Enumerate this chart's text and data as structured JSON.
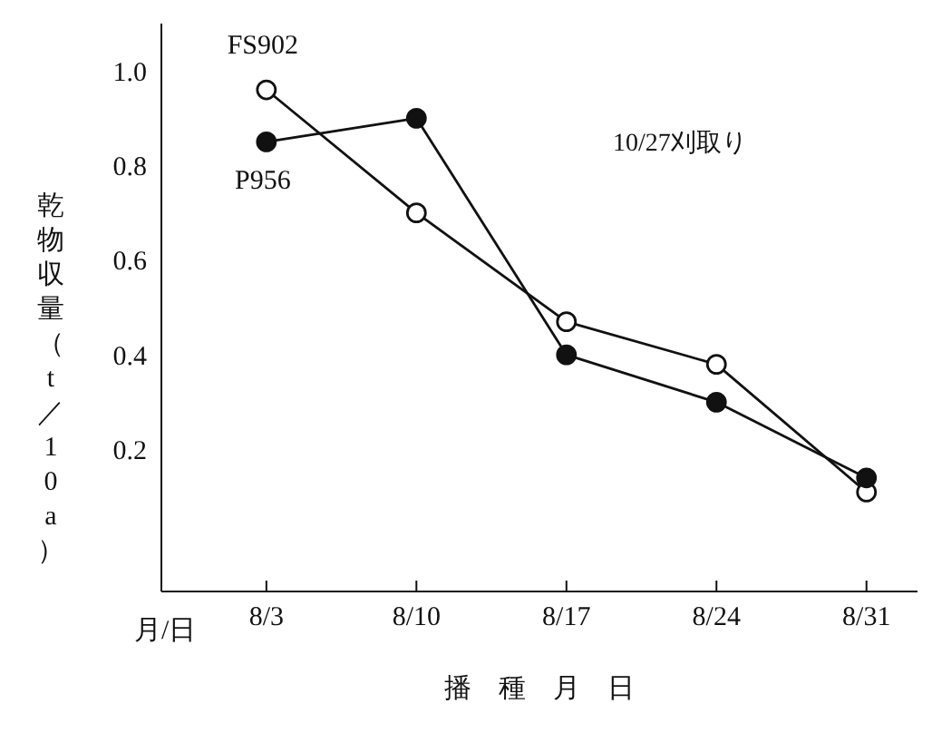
{
  "chart_data": {
    "type": "line",
    "xlabel": "播　種　月　日",
    "ylabel": "乾物収量（t／10a）",
    "categories": [
      "8/3",
      "8/10",
      "8/17",
      "8/24",
      "8/31"
    ],
    "series": [
      {
        "name": "FS902",
        "color": "#111111",
        "values": [
          0.96,
          0.7,
          0.47,
          0.38,
          0.11
        ]
      },
      {
        "name": "P956",
        "color": "#111111",
        "values": [
          0.85,
          0.9,
          0.4,
          0.3,
          0.14
        ]
      }
    ],
    "ylim": [
      -0.1,
      1.1
    ],
    "yticks": [
      {
        "value": 0.2,
        "label": "0.2"
      },
      {
        "value": 0.4,
        "label": "0.4"
      },
      {
        "value": 0.6,
        "label": "0.6"
      },
      {
        "value": 0.8,
        "label": "0.8"
      },
      {
        "value": 1,
        "label": "1.0"
      }
    ],
    "annotations": [
      "10/27刈取り",
      "月/日"
    ],
    "marker": "circle",
    "line_style": "solid",
    "grid": false,
    "legend": false
  }
}
